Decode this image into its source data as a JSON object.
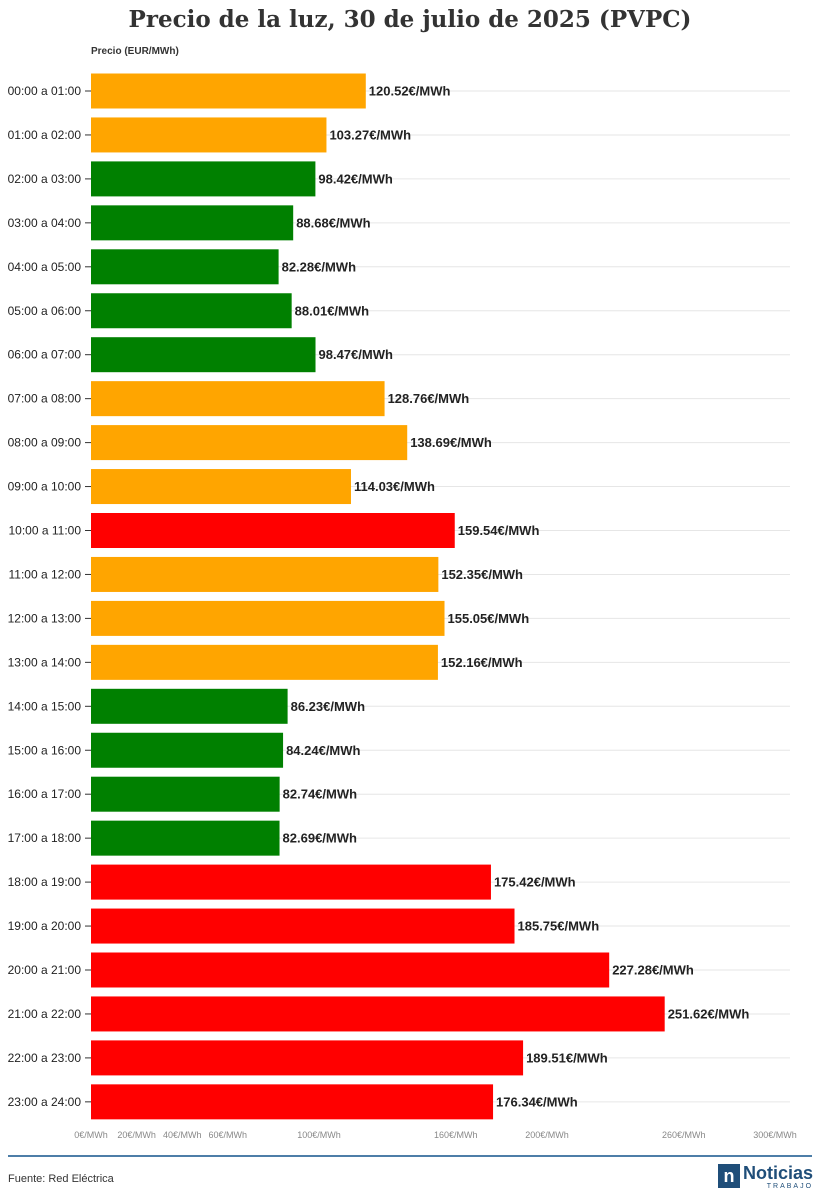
{
  "title": "Precio de la luz, 30 de julio de 2025 (PVPC)",
  "source": "Fuente: Red Eléctrica",
  "logo": {
    "mark": "n",
    "word": "Noticias",
    "sub": "TRABAJO"
  },
  "colors": {
    "low": "#008000",
    "mid": "#ffa500",
    "high": "#ff0000",
    "grid": "#e6e6e6",
    "footer_rule": "#4d7ea8"
  },
  "chart_data": {
    "type": "bar",
    "orientation": "horizontal",
    "title": "Precio de la luz, 30 de julio de 2025 (PVPC)",
    "xlabel": "Precio (EUR/MWh)",
    "ylabel": "",
    "xlim": [
      0,
      300
    ],
    "grid": true,
    "value_suffix": "€/MWh",
    "ticks": [
      {
        "value": 0,
        "label": "0€/MWh"
      },
      {
        "value": 20,
        "label": "20€/MWh"
      },
      {
        "value": 40,
        "label": "40€/MWh"
      },
      {
        "value": 60,
        "label": "60€/MWh"
      },
      {
        "value": 100,
        "label": "100€/MWh"
      },
      {
        "value": 160,
        "label": "160€/MWh"
      },
      {
        "value": 200,
        "label": "200€/MWh"
      },
      {
        "value": 260,
        "label": "260€/MWh"
      },
      {
        "value": 300,
        "label": "300€/MWh"
      }
    ],
    "categories": [
      "00:00 a 01:00",
      "01:00 a 02:00",
      "02:00 a 03:00",
      "03:00 a 04:00",
      "04:00 a 05:00",
      "05:00 a 06:00",
      "06:00 a 07:00",
      "07:00 a 08:00",
      "08:00 a 09:00",
      "09:00 a 10:00",
      "10:00 a 11:00",
      "11:00 a 12:00",
      "12:00 a 13:00",
      "13:00 a 14:00",
      "14:00 a 15:00",
      "15:00 a 16:00",
      "16:00 a 17:00",
      "17:00 a 18:00",
      "18:00 a 19:00",
      "19:00 a 20:00",
      "20:00 a 21:00",
      "21:00 a 22:00",
      "22:00 a 23:00",
      "23:00 a 24:00"
    ],
    "values": [
      120.52,
      103.27,
      98.42,
      88.68,
      82.28,
      88.01,
      98.47,
      128.76,
      138.69,
      114.03,
      159.54,
      152.35,
      155.05,
      152.16,
      86.23,
      84.24,
      82.74,
      82.69,
      175.42,
      185.75,
      227.28,
      251.62,
      189.51,
      176.34
    ],
    "labels": [
      "120.52€/MWh",
      "103.27€/MWh",
      "98.42€/MWh",
      "88.68€/MWh",
      "82.28€/MWh",
      "88.01€/MWh",
      "98.47€/MWh",
      "128.76€/MWh",
      "138.69€/MWh",
      "114.03€/MWh",
      "159.54€/MWh",
      "152.35€/MWh",
      "155.05€/MWh",
      "152.16€/MWh",
      "86.23€/MWh",
      "84.24€/MWh",
      "82.74€/MWh",
      "82.69€/MWh",
      "175.42€/MWh",
      "185.75€/MWh",
      "227.28€/MWh",
      "251.62€/MWh",
      "189.51€/MWh",
      "176.34€/MWh"
    ],
    "bar_colors": [
      "mid",
      "mid",
      "low",
      "low",
      "low",
      "low",
      "low",
      "mid",
      "mid",
      "mid",
      "high",
      "mid",
      "mid",
      "mid",
      "low",
      "low",
      "low",
      "low",
      "high",
      "high",
      "high",
      "high",
      "high",
      "high"
    ]
  }
}
